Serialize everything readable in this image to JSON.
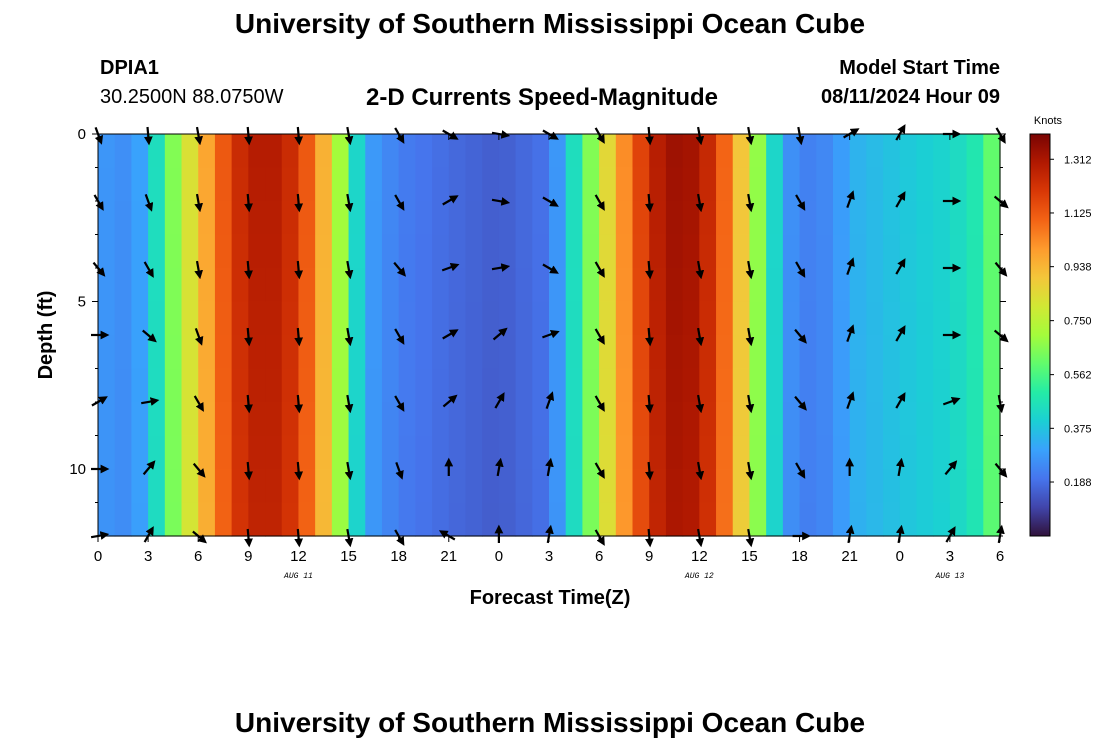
{
  "header": {
    "title": "University of Southern Mississippi Ocean Cube",
    "station_id": "DPIA1",
    "coords": "30.2500N  88.0750W",
    "subtitle": "2-D Currents Speed-Magnitude",
    "model_start_label": "Model Start Time",
    "model_start_value": "08/11/2024 Hour 09"
  },
  "footer": {
    "title": "University of Southern Mississippi Ocean Cube"
  },
  "chart_data": {
    "type": "heatmap",
    "title": "2-D Currents Speed-Magnitude",
    "xlabel": "Forecast Time(Z)",
    "ylabel": "Depth (ft)",
    "x_ticks": [
      "0",
      "3",
      "6",
      "9",
      "12",
      "15",
      "18",
      "21",
      "0",
      "3",
      "6",
      "9",
      "12",
      "15",
      "18",
      "21",
      "0",
      "3",
      "6"
    ],
    "x_range_hours": [
      0,
      54
    ],
    "date_labels": [
      {
        "hour": 12,
        "text": "AUG 11"
      },
      {
        "hour": 36,
        "text": "AUG 12"
      },
      {
        "hour": 51,
        "text": "AUG 13"
      }
    ],
    "y_range_ft": [
      0,
      12
    ],
    "y_ticks": [
      "0",
      "5",
      "10"
    ],
    "y_tick_values": [
      0,
      5,
      10
    ],
    "colorbar": {
      "title": "Knots",
      "min": 0.0,
      "max": 1.4,
      "tick_values": [
        1.312,
        1.125,
        0.938,
        0.75,
        0.562,
        0.375,
        0.188
      ],
      "tick_labels": [
        "1.312",
        "1.125",
        "0.938",
        "0.750",
        "0.562",
        "0.375",
        "0.188"
      ],
      "colors": [
        "#30123b",
        "#4145ab",
        "#4675ed",
        "#39a2fc",
        "#1bcfd4",
        "#24eca6",
        "#61fc6c",
        "#a4fc3b",
        "#d1e834",
        "#f3c63a",
        "#fe9b2d",
        "#f36315",
        "#d93806",
        "#b11901",
        "#7a0403"
      ]
    },
    "speed_profile": {
      "hours": [
        0,
        2,
        3,
        4,
        5,
        6,
        7,
        8,
        9,
        10,
        11,
        12,
        13,
        14,
        15,
        16,
        18,
        21,
        24,
        27,
        28,
        29,
        30,
        31,
        32,
        33,
        34,
        35,
        36,
        37,
        38,
        39,
        40,
        41,
        42,
        44,
        45,
        48,
        51,
        53,
        54
      ],
      "speeds": [
        0.28,
        0.25,
        0.35,
        0.55,
        0.75,
        0.9,
        1.05,
        1.2,
        1.28,
        1.3,
        1.28,
        1.2,
        1.05,
        0.85,
        0.55,
        0.3,
        0.22,
        0.18,
        0.15,
        0.2,
        0.35,
        0.55,
        0.75,
        0.95,
        1.1,
        1.25,
        1.32,
        1.35,
        1.3,
        1.2,
        1.0,
        0.8,
        0.55,
        0.3,
        0.22,
        0.25,
        0.33,
        0.38,
        0.42,
        0.5,
        0.7
      ]
    },
    "arrow_hours": [
      0,
      3,
      6,
      9,
      12,
      15,
      18,
      21,
      24,
      27,
      30,
      33,
      36,
      39,
      42,
      45,
      48,
      51,
      54
    ],
    "arrow_depths_ft": [
      0,
      2,
      4,
      6,
      8,
      10,
      12
    ],
    "arrow_directions_deg": [
      [
        160,
        175,
        170,
        175,
        175,
        170,
        150,
        120,
        100,
        120,
        150,
        175,
        170,
        170,
        170,
        60,
        30,
        90,
        150
      ],
      [
        150,
        160,
        170,
        175,
        175,
        170,
        150,
        60,
        100,
        120,
        150,
        175,
        170,
        170,
        150,
        20,
        30,
        90,
        130
      ],
      [
        140,
        150,
        170,
        175,
        175,
        170,
        140,
        70,
        80,
        120,
        150,
        175,
        170,
        170,
        150,
        20,
        30,
        90,
        140
      ],
      [
        90,
        130,
        160,
        175,
        175,
        170,
        150,
        60,
        50,
        70,
        150,
        175,
        170,
        170,
        140,
        20,
        30,
        90,
        130
      ],
      [
        60,
        80,
        150,
        175,
        175,
        170,
        150,
        50,
        30,
        20,
        150,
        175,
        170,
        170,
        140,
        20,
        30,
        70,
        170
      ],
      [
        90,
        40,
        140,
        175,
        175,
        170,
        160,
        0,
        10,
        10,
        150,
        175,
        170,
        170,
        150,
        0,
        10,
        40,
        140
      ],
      [
        80,
        30,
        130,
        175,
        175,
        170,
        150,
        300,
        0,
        10,
        150,
        175,
        170,
        170,
        90,
        10,
        10,
        30,
        10
      ]
    ]
  }
}
